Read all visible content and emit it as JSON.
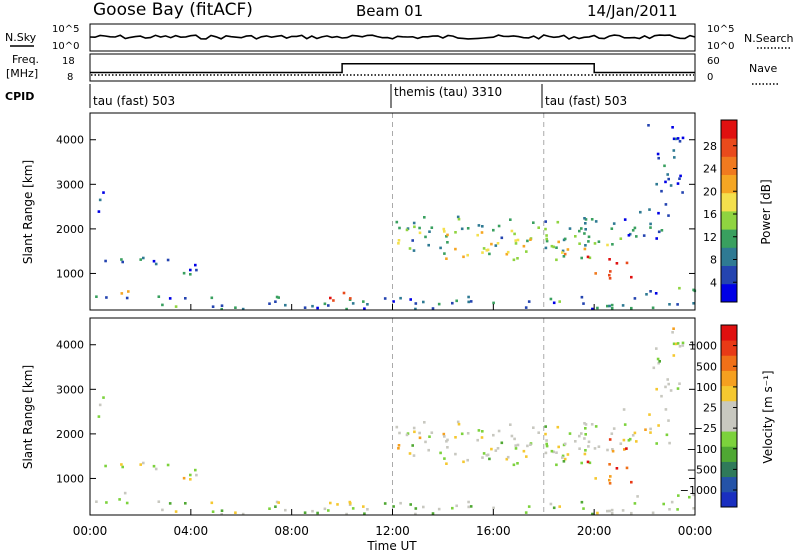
{
  "header": {
    "station": "Goose Bay (fitACF)",
    "beam": "Beam 01",
    "date": "14/Jan/2011"
  },
  "summary_panels": {
    "nsky": {
      "label": "N.Sky",
      "ticks": [
        "10^5",
        "10^0"
      ],
      "right_label": "N.Search",
      "right_ticks": [
        "10^5",
        "10^0"
      ]
    },
    "freq": {
      "label_lines": [
        "Freq.",
        "[MHz]"
      ],
      "ticks": [
        "18",
        "8"
      ],
      "right_label": "Nave",
      "right_ticks": [
        "60",
        "0"
      ],
      "freq_schedule": [
        {
          "start_h": 0,
          "end_h": 10,
          "value": 10.5
        },
        {
          "start_h": 10,
          "end_h": 20,
          "value": 14.5
        },
        {
          "start_h": 20,
          "end_h": 24,
          "value": 10.5
        }
      ]
    },
    "cpid": {
      "label": "CPID",
      "segments": [
        {
          "start_h": 0,
          "end_h": 12,
          "label": "tau (fast) 503"
        },
        {
          "start_h": 12,
          "end_h": 18,
          "label": "themis (tau) 3310"
        },
        {
          "start_h": 18,
          "end_h": 24,
          "label": "tau (fast) 503"
        }
      ]
    }
  },
  "chart_data": [
    {
      "type": "heatmap",
      "panel": "power",
      "ylabel": "Slant Range [km]",
      "yticks": [
        1000,
        2000,
        3000,
        4000
      ],
      "ylim": [
        180,
        4600
      ],
      "xlim_hours": [
        0,
        24
      ],
      "colorbar": {
        "label": "Power [dB]",
        "ticks": [
          4,
          8,
          12,
          16,
          20,
          24,
          28
        ],
        "colors": [
          "#0000e6",
          "#2444b0",
          "#2f7a93",
          "#39a05f",
          "#8fd440",
          "#f4e04d",
          "#f5a623",
          "#f07a1f",
          "#e94a1c",
          "#e01010"
        ]
      },
      "regions": [
        {
          "h0": 0.0,
          "h1": 24.0,
          "r0": 220,
          "r1": 520,
          "level": 0.25
        },
        {
          "h0": 0.5,
          "h1": 3.5,
          "r0": 1150,
          "r1": 1450,
          "level": 0.25
        },
        {
          "h0": 0.3,
          "h1": 1.0,
          "r0": 2400,
          "r1": 2850,
          "level": 0.2
        },
        {
          "h0": 2.5,
          "h1": 4.5,
          "r0": 950,
          "r1": 1250,
          "level": 0.2
        },
        {
          "h0": 9.0,
          "h1": 10.5,
          "r0": 350,
          "r1": 650,
          "level": 0.75
        },
        {
          "h0": 0.8,
          "h1": 1.6,
          "r0": 500,
          "r1": 750,
          "level": 0.55
        },
        {
          "h0": 11.8,
          "h1": 21.5,
          "r0": 1500,
          "r1": 2300,
          "level": 0.35
        },
        {
          "h0": 14.0,
          "h1": 20.5,
          "r0": 1300,
          "r1": 2000,
          "level": 0.55
        },
        {
          "h0": 19.5,
          "h1": 21.5,
          "r0": 900,
          "r1": 1400,
          "level": 0.9
        },
        {
          "h0": 21.0,
          "h1": 23.0,
          "r0": 1800,
          "r1": 2600,
          "level": 0.2
        },
        {
          "h0": 22.0,
          "h1": 23.5,
          "r0": 2800,
          "r1": 4400,
          "level": 0.15
        },
        {
          "h0": 21.5,
          "h1": 24.0,
          "r0": 450,
          "r1": 700,
          "level": 0.25
        }
      ]
    },
    {
      "type": "heatmap",
      "panel": "velocity",
      "ylabel": "Slant Range [km]",
      "yticks": [
        1000,
        2000,
        3000,
        4000
      ],
      "ylim": [
        180,
        4600
      ],
      "xlim_hours": [
        0,
        24
      ],
      "xlabel": "Time UT",
      "xticks": [
        "00:00",
        "04:00",
        "08:00",
        "12:00",
        "16:00",
        "20:00",
        "00:00"
      ],
      "colorbar": {
        "label": "Velocity [m s⁻¹]",
        "ticks": [
          "1000",
          "500",
          "100",
          "25",
          "−25",
          "−100",
          "−500",
          "−1000"
        ],
        "colors": [
          "#1a2fc0",
          "#2453a8",
          "#2f7a5a",
          "#4fa833",
          "#7cd23c",
          "#c8c8c0",
          "#c8c8c0",
          "#f5c830",
          "#f5a020",
          "#f07018",
          "#e83a16",
          "#e01010"
        ]
      },
      "regions": [
        {
          "h0": 0.0,
          "h1": 24.0,
          "r0": 220,
          "r1": 520,
          "level": 0.45
        },
        {
          "h0": 0.5,
          "h1": 3.5,
          "r0": 1150,
          "r1": 1450,
          "level": 0.5
        },
        {
          "h0": 0.3,
          "h1": 1.0,
          "r0": 2400,
          "r1": 2850,
          "level": 0.5
        },
        {
          "h0": 2.5,
          "h1": 4.5,
          "r0": 950,
          "r1": 1250,
          "level": 0.5
        },
        {
          "h0": 0.8,
          "h1": 1.6,
          "r0": 500,
          "r1": 750,
          "level": 0.35
        },
        {
          "h0": 9.0,
          "h1": 10.5,
          "r0": 350,
          "r1": 650,
          "level": 0.5
        },
        {
          "h0": 11.8,
          "h1": 21.5,
          "r0": 1500,
          "r1": 2300,
          "level": 0.5
        },
        {
          "h0": 14.0,
          "h1": 20.5,
          "r0": 1300,
          "r1": 2000,
          "level": 0.5
        },
        {
          "h0": 19.5,
          "h1": 21.5,
          "r0": 900,
          "r1": 1400,
          "level": 0.78
        },
        {
          "h0": 20.0,
          "h1": 21.5,
          "r0": 1600,
          "r1": 2000,
          "level": 0.78
        },
        {
          "h0": 21.0,
          "h1": 23.0,
          "r0": 1800,
          "r1": 2600,
          "level": 0.5
        },
        {
          "h0": 22.0,
          "h1": 23.5,
          "r0": 2800,
          "r1": 4400,
          "level": 0.5
        },
        {
          "h0": 21.5,
          "h1": 24.0,
          "r0": 450,
          "r1": 700,
          "level": 0.5
        }
      ]
    }
  ]
}
